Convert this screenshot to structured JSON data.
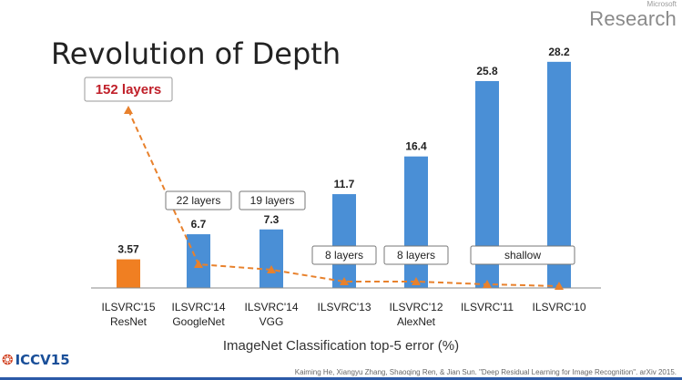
{
  "brand": {
    "company_small": "Microsoft",
    "company_big": "Research"
  },
  "title": "Revolution of Depth",
  "conference_logo": {
    "mark": "ICCV15"
  },
  "citation": "Kaiming He, Xiangyu Zhang, Shaoqing Ren, & Jian Sun. \"Deep Residual Learning for Image Recognition\". arXiv 2015.",
  "colors": {
    "resnet_bar": "#f07f22",
    "bar": "#4a8fd6",
    "trend": "#e8812c",
    "callout_text": "#c0202a"
  },
  "chart_data": {
    "type": "bar",
    "xlabel": "ImageNet Classification top-5 error (%)",
    "ylabel": "",
    "ylim": [
      0,
      30
    ],
    "categories": [
      [
        "ILSVRC'15",
        "ResNet"
      ],
      [
        "ILSVRC'14",
        "GoogleNet"
      ],
      [
        "ILSVRC'14",
        "VGG"
      ],
      [
        "ILSVRC'13",
        ""
      ],
      [
        "ILSVRC'12",
        "AlexNet"
      ],
      [
        "ILSVRC'11",
        ""
      ],
      [
        "ILSVRC'10",
        ""
      ]
    ],
    "values": [
      3.57,
      6.7,
      7.3,
      11.7,
      16.4,
      25.8,
      28.2
    ],
    "value_labels": [
      "3.57",
      "6.7",
      "7.3",
      "11.7",
      "16.4",
      "25.8",
      "28.2"
    ],
    "layer_labels": [
      "152 layers",
      "22 layers",
      "19 layers",
      "8 layers",
      "8 layers",
      "shallow"
    ],
    "trend_line": "depth trend across entries"
  }
}
